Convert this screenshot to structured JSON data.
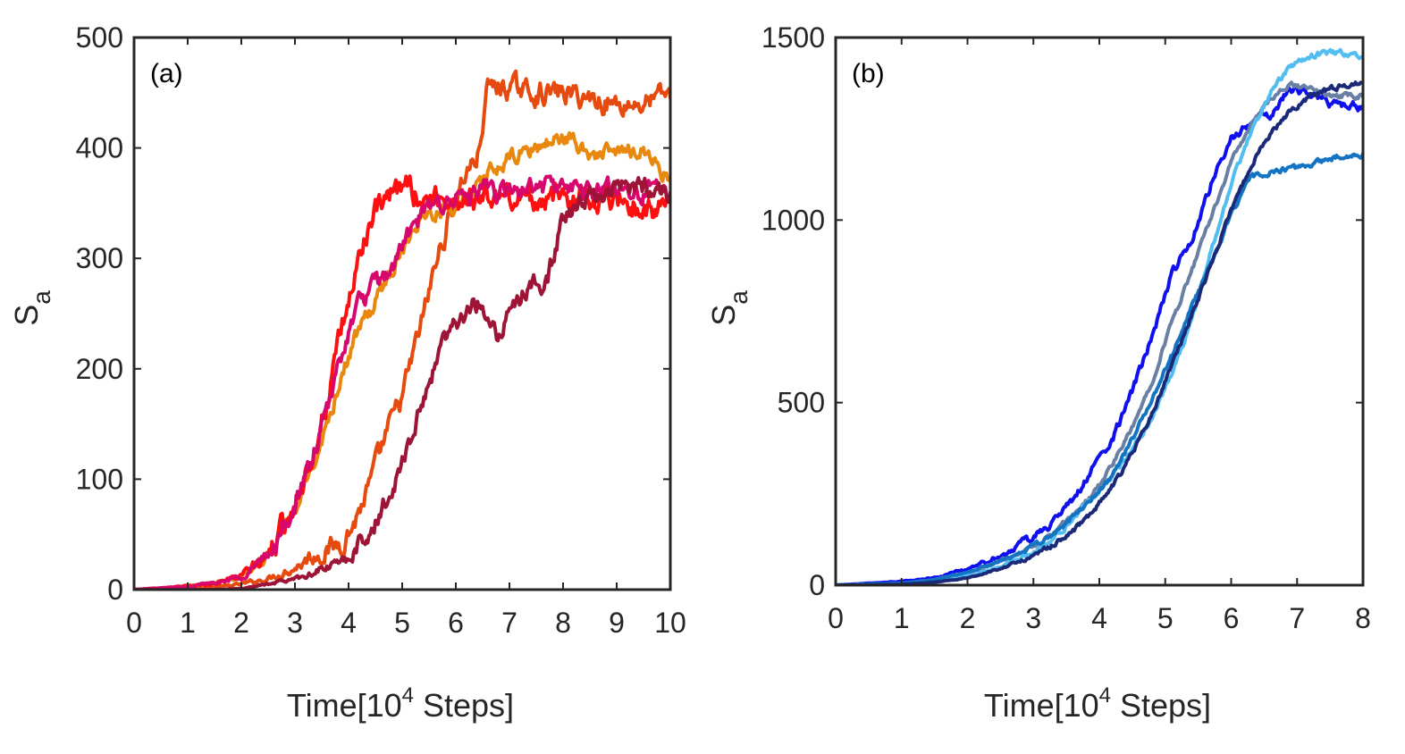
{
  "chart_data": [
    {
      "type": "line",
      "panel_label": "(a)",
      "xlabel": {
        "prefix": "Time[10",
        "sup": "4",
        "suffix": " Steps]"
      },
      "ylabel": {
        "main": "S",
        "sub": "a"
      },
      "xlim": [
        0,
        10
      ],
      "ylim": [
        0,
        500
      ],
      "xticks": [
        0,
        1,
        2,
        3,
        4,
        5,
        6,
        7,
        8,
        9,
        10
      ],
      "yticks": [
        0,
        100,
        200,
        300,
        400,
        500
      ],
      "grid": false,
      "series": [
        {
          "color": "#e64a0f",
          "noise": 8,
          "x": [
            0,
            1,
            1.5,
            2,
            2.5,
            3,
            3.3,
            3.6,
            3.9,
            4.1,
            4.4,
            4.7,
            5.0,
            5.3,
            5.6,
            5.9,
            6.2,
            6.4,
            6.6,
            6.8,
            7,
            7.5,
            8,
            8.5,
            9,
            9.5,
            10
          ],
          "y": [
            0,
            1,
            2,
            5,
            10,
            20,
            30,
            35,
            45,
            60,
            95,
            140,
            175,
            230,
            290,
            340,
            380,
            390,
            455,
            455,
            455,
            450,
            450,
            445,
            440,
            440,
            450
          ]
        },
        {
          "color": "#e8880c",
          "noise": 6,
          "x": [
            0,
            1,
            1.5,
            2,
            2.5,
            3,
            3.3,
            3.6,
            3.9,
            4.2,
            4.5,
            4.8,
            5.1,
            5.4,
            5.7,
            6,
            6.3,
            6.6,
            7,
            7.5,
            8,
            8.5,
            9,
            9.5,
            10
          ],
          "y": [
            0,
            3,
            6,
            12,
            30,
            70,
            110,
            150,
            200,
            235,
            260,
            290,
            320,
            340,
            345,
            350,
            355,
            375,
            390,
            400,
            410,
            395,
            395,
            400,
            370
          ]
        },
        {
          "color": "#ff1010",
          "noise": 9,
          "x": [
            0,
            1,
            1.5,
            2,
            2.5,
            3,
            3.3,
            3.6,
            3.9,
            4.1,
            4.3,
            4.5,
            4.7,
            4.9,
            5.1,
            5.3,
            5.6,
            6,
            6.5,
            7,
            7.5,
            8,
            8.5,
            9,
            9.5,
            10
          ],
          "y": [
            0,
            3,
            6,
            12,
            30,
            80,
            120,
            170,
            240,
            280,
            320,
            340,
            350,
            360,
            370,
            355,
            355,
            355,
            355,
            355,
            355,
            355,
            355,
            355,
            345,
            345
          ]
        },
        {
          "color": "#d6086e",
          "noise": 7,
          "x": [
            0,
            1,
            1.5,
            2,
            2.5,
            3,
            3.3,
            3.6,
            3.9,
            4.2,
            4.5,
            4.8,
            5.1,
            5.4,
            5.7,
            6,
            6.5,
            7,
            7.5,
            8,
            8.5,
            9,
            9.5,
            10
          ],
          "y": [
            0,
            3,
            6,
            12,
            30,
            75,
            115,
            160,
            220,
            260,
            275,
            290,
            320,
            340,
            350,
            355,
            360,
            360,
            365,
            365,
            360,
            365,
            360,
            360
          ]
        },
        {
          "color": "#9e1436",
          "noise": 7,
          "x": [
            0,
            1,
            1.5,
            2,
            2.5,
            3,
            3.3,
            3.6,
            3.9,
            4.2,
            4.5,
            4.8,
            5.1,
            5.4,
            5.7,
            6.0,
            6.3,
            6.5,
            6.8,
            7.1,
            7.4,
            7.7,
            8.0,
            8.3,
            8.6,
            9,
            9.5,
            10
          ],
          "y": [
            0,
            0,
            0,
            1,
            5,
            10,
            15,
            20,
            25,
            40,
            60,
            90,
            130,
            170,
            220,
            245,
            255,
            260,
            230,
            260,
            275,
            280,
            335,
            350,
            355,
            365,
            365,
            360
          ]
        }
      ]
    },
    {
      "type": "line",
      "panel_label": "(b)",
      "xlabel": {
        "prefix": "Time[10",
        "sup": "4",
        "suffix": " Steps]"
      },
      "ylabel": {
        "main": "S",
        "sub": "a"
      },
      "xlim": [
        0,
        8
      ],
      "ylim": [
        0,
        1500
      ],
      "xticks": [
        0,
        1,
        2,
        3,
        4,
        5,
        6,
        7,
        8
      ],
      "yticks": [
        0,
        500,
        1000,
        1500
      ],
      "grid": false,
      "series": [
        {
          "color": "#1010ee",
          "noise": 9,
          "x": [
            0,
            1,
            1.5,
            2,
            2.5,
            3,
            3.3,
            3.6,
            3.9,
            4.2,
            4.5,
            4.8,
            5.1,
            5.4,
            5.7,
            6,
            6.3,
            6.6,
            6.9,
            7.2,
            7.5,
            8
          ],
          "y": [
            0,
            10,
            20,
            45,
            80,
            130,
            175,
            230,
            320,
            400,
            530,
            680,
            850,
            950,
            1100,
            1220,
            1270,
            1290,
            1360,
            1345,
            1320,
            1310
          ]
        },
        {
          "color": "#6a7fa4",
          "noise": 6,
          "x": [
            0,
            1,
            1.5,
            2,
            2.5,
            3,
            3.3,
            3.6,
            3.9,
            4.2,
            4.5,
            4.8,
            5.1,
            5.4,
            5.7,
            6,
            6.3,
            6.6,
            6.9,
            7.2,
            7.5,
            8
          ],
          "y": [
            0,
            5,
            15,
            35,
            65,
            105,
            140,
            190,
            250,
            330,
            430,
            560,
            720,
            860,
            1010,
            1160,
            1260,
            1330,
            1370,
            1360,
            1340,
            1340
          ]
        },
        {
          "color": "#51bdf0",
          "noise": 6,
          "x": [
            0,
            1,
            1.5,
            2,
            2.5,
            3,
            3.3,
            3.6,
            3.9,
            4.2,
            4.5,
            4.8,
            5.1,
            5.4,
            5.7,
            6,
            6.3,
            6.6,
            6.9,
            7.2,
            7.5,
            8
          ],
          "y": [
            0,
            5,
            12,
            25,
            50,
            90,
            130,
            180,
            240,
            300,
            370,
            460,
            580,
            720,
            920,
            1100,
            1240,
            1350,
            1420,
            1450,
            1460,
            1450
          ]
        },
        {
          "color": "#1274c2",
          "noise": 6,
          "x": [
            0,
            1,
            1.5,
            2,
            2.5,
            3,
            3.3,
            3.6,
            3.9,
            4.2,
            4.5,
            4.8,
            5.1,
            5.4,
            5.7,
            6,
            6.3,
            6.6,
            6.9,
            7.2,
            7.5,
            8
          ],
          "y": [
            0,
            5,
            15,
            35,
            65,
            105,
            140,
            185,
            240,
            300,
            400,
            510,
            630,
            760,
            890,
            1010,
            1120,
            1130,
            1140,
            1150,
            1170,
            1180
          ]
        },
        {
          "color": "#1b2a78",
          "noise": 6,
          "x": [
            0,
            1,
            1.5,
            2,
            2.5,
            3,
            3.3,
            3.6,
            3.9,
            4.2,
            4.5,
            4.8,
            5.1,
            5.4,
            5.7,
            6,
            6.3,
            6.6,
            6.9,
            7.2,
            7.5,
            8
          ],
          "y": [
            0,
            2,
            8,
            20,
            45,
            80,
            110,
            150,
            200,
            270,
            360,
            470,
            600,
            740,
            880,
            1030,
            1150,
            1240,
            1300,
            1340,
            1360,
            1380
          ]
        }
      ]
    }
  ]
}
